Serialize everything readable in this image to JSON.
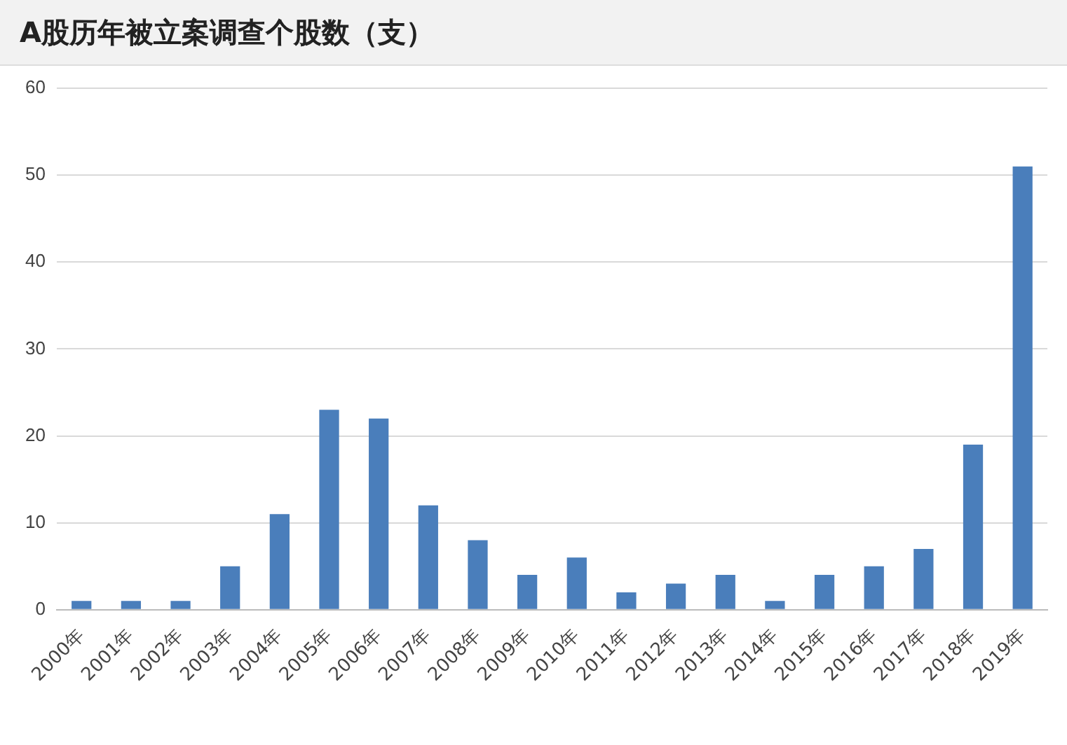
{
  "chart_data": {
    "type": "bar",
    "title": "A股历年被立案调查个股数（支）",
    "categories": [
      "2000年",
      "2001年",
      "2002年",
      "2003年",
      "2004年",
      "2005年",
      "2006年",
      "2007年",
      "2008年",
      "2009年",
      "2010年",
      "2011年",
      "2012年",
      "2013年",
      "2014年",
      "2015年",
      "2016年",
      "2017年",
      "2018年",
      "2019年"
    ],
    "values": [
      1,
      1,
      1,
      5,
      11,
      23,
      22,
      12,
      8,
      4,
      6,
      2,
      3,
      4,
      1,
      4,
      5,
      7,
      19,
      51
    ],
    "color": "#4a7ebb",
    "ylim": [
      0,
      60
    ],
    "yticks": [
      0,
      10,
      20,
      30,
      40,
      50,
      60
    ],
    "grid": "y",
    "legend": false
  }
}
